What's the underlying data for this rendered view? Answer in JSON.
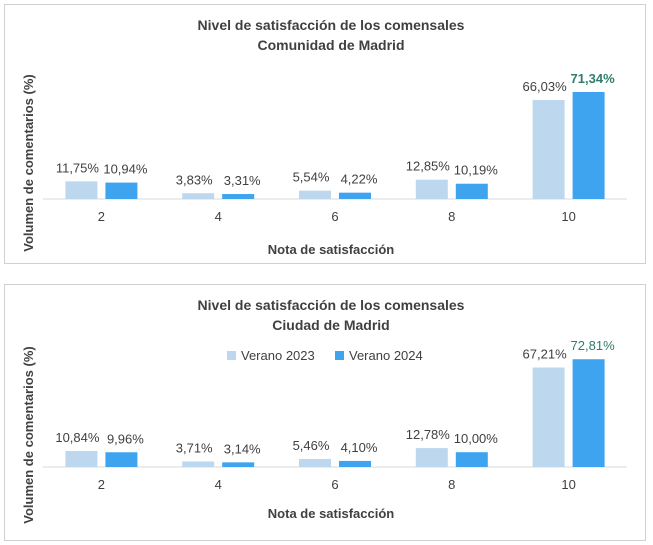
{
  "colors": {
    "series1": "#bdd7ee",
    "series2": "#3fa4ef",
    "axis": "#d9d9d9",
    "highlight": "#2e7d6e"
  },
  "chart_data": [
    {
      "type": "bar",
      "title": "Nivel de satisfacción de los comensales",
      "subtitle": "Comunidad de Madrid",
      "xlabel": "Nota de satisfacción",
      "ylabel": "Volumen de comentarios (%)",
      "categories": [
        "2",
        "4",
        "6",
        "8",
        "10"
      ],
      "ylim": [
        0,
        80
      ],
      "legend": null,
      "series": [
        {
          "name": "Verano 2023",
          "values": [
            11.75,
            3.83,
            5.54,
            12.85,
            66.03
          ],
          "labels": [
            "11,75%",
            "3,83%",
            "5,54%",
            "12,85%",
            "66,03%"
          ]
        },
        {
          "name": "Verano 2024",
          "values": [
            10.94,
            3.31,
            4.22,
            10.19,
            71.34
          ],
          "labels": [
            "10,94%",
            "3,31%",
            "4,22%",
            "10,19%",
            "71,34%"
          ]
        }
      ],
      "highlight": {
        "series": 1,
        "index": 4,
        "bold": true
      }
    },
    {
      "type": "bar",
      "title": "Nivel de satisfacción de los comensales",
      "subtitle": "Ciudad de Madrid",
      "xlabel": "Nota de satisfacción",
      "ylabel": "Volumen de comentarios (%)",
      "categories": [
        "2",
        "4",
        "6",
        "8",
        "10"
      ],
      "ylim": [
        0,
        80
      ],
      "legend": "top",
      "series": [
        {
          "name": "Verano 2023",
          "values": [
            10.84,
            3.71,
            5.46,
            12.78,
            67.21
          ],
          "labels": [
            "10,84%",
            "3,71%",
            "5,46%",
            "12,78%",
            "67,21%"
          ]
        },
        {
          "name": "Verano 2024",
          "values": [
            9.96,
            3.14,
            4.1,
            10.0,
            72.81
          ],
          "labels": [
            "9,96%",
            "3,14%",
            "4,10%",
            "10,00%",
            "72,81%"
          ]
        }
      ],
      "highlight": {
        "series": 1,
        "index": 4,
        "bold": false
      }
    }
  ]
}
